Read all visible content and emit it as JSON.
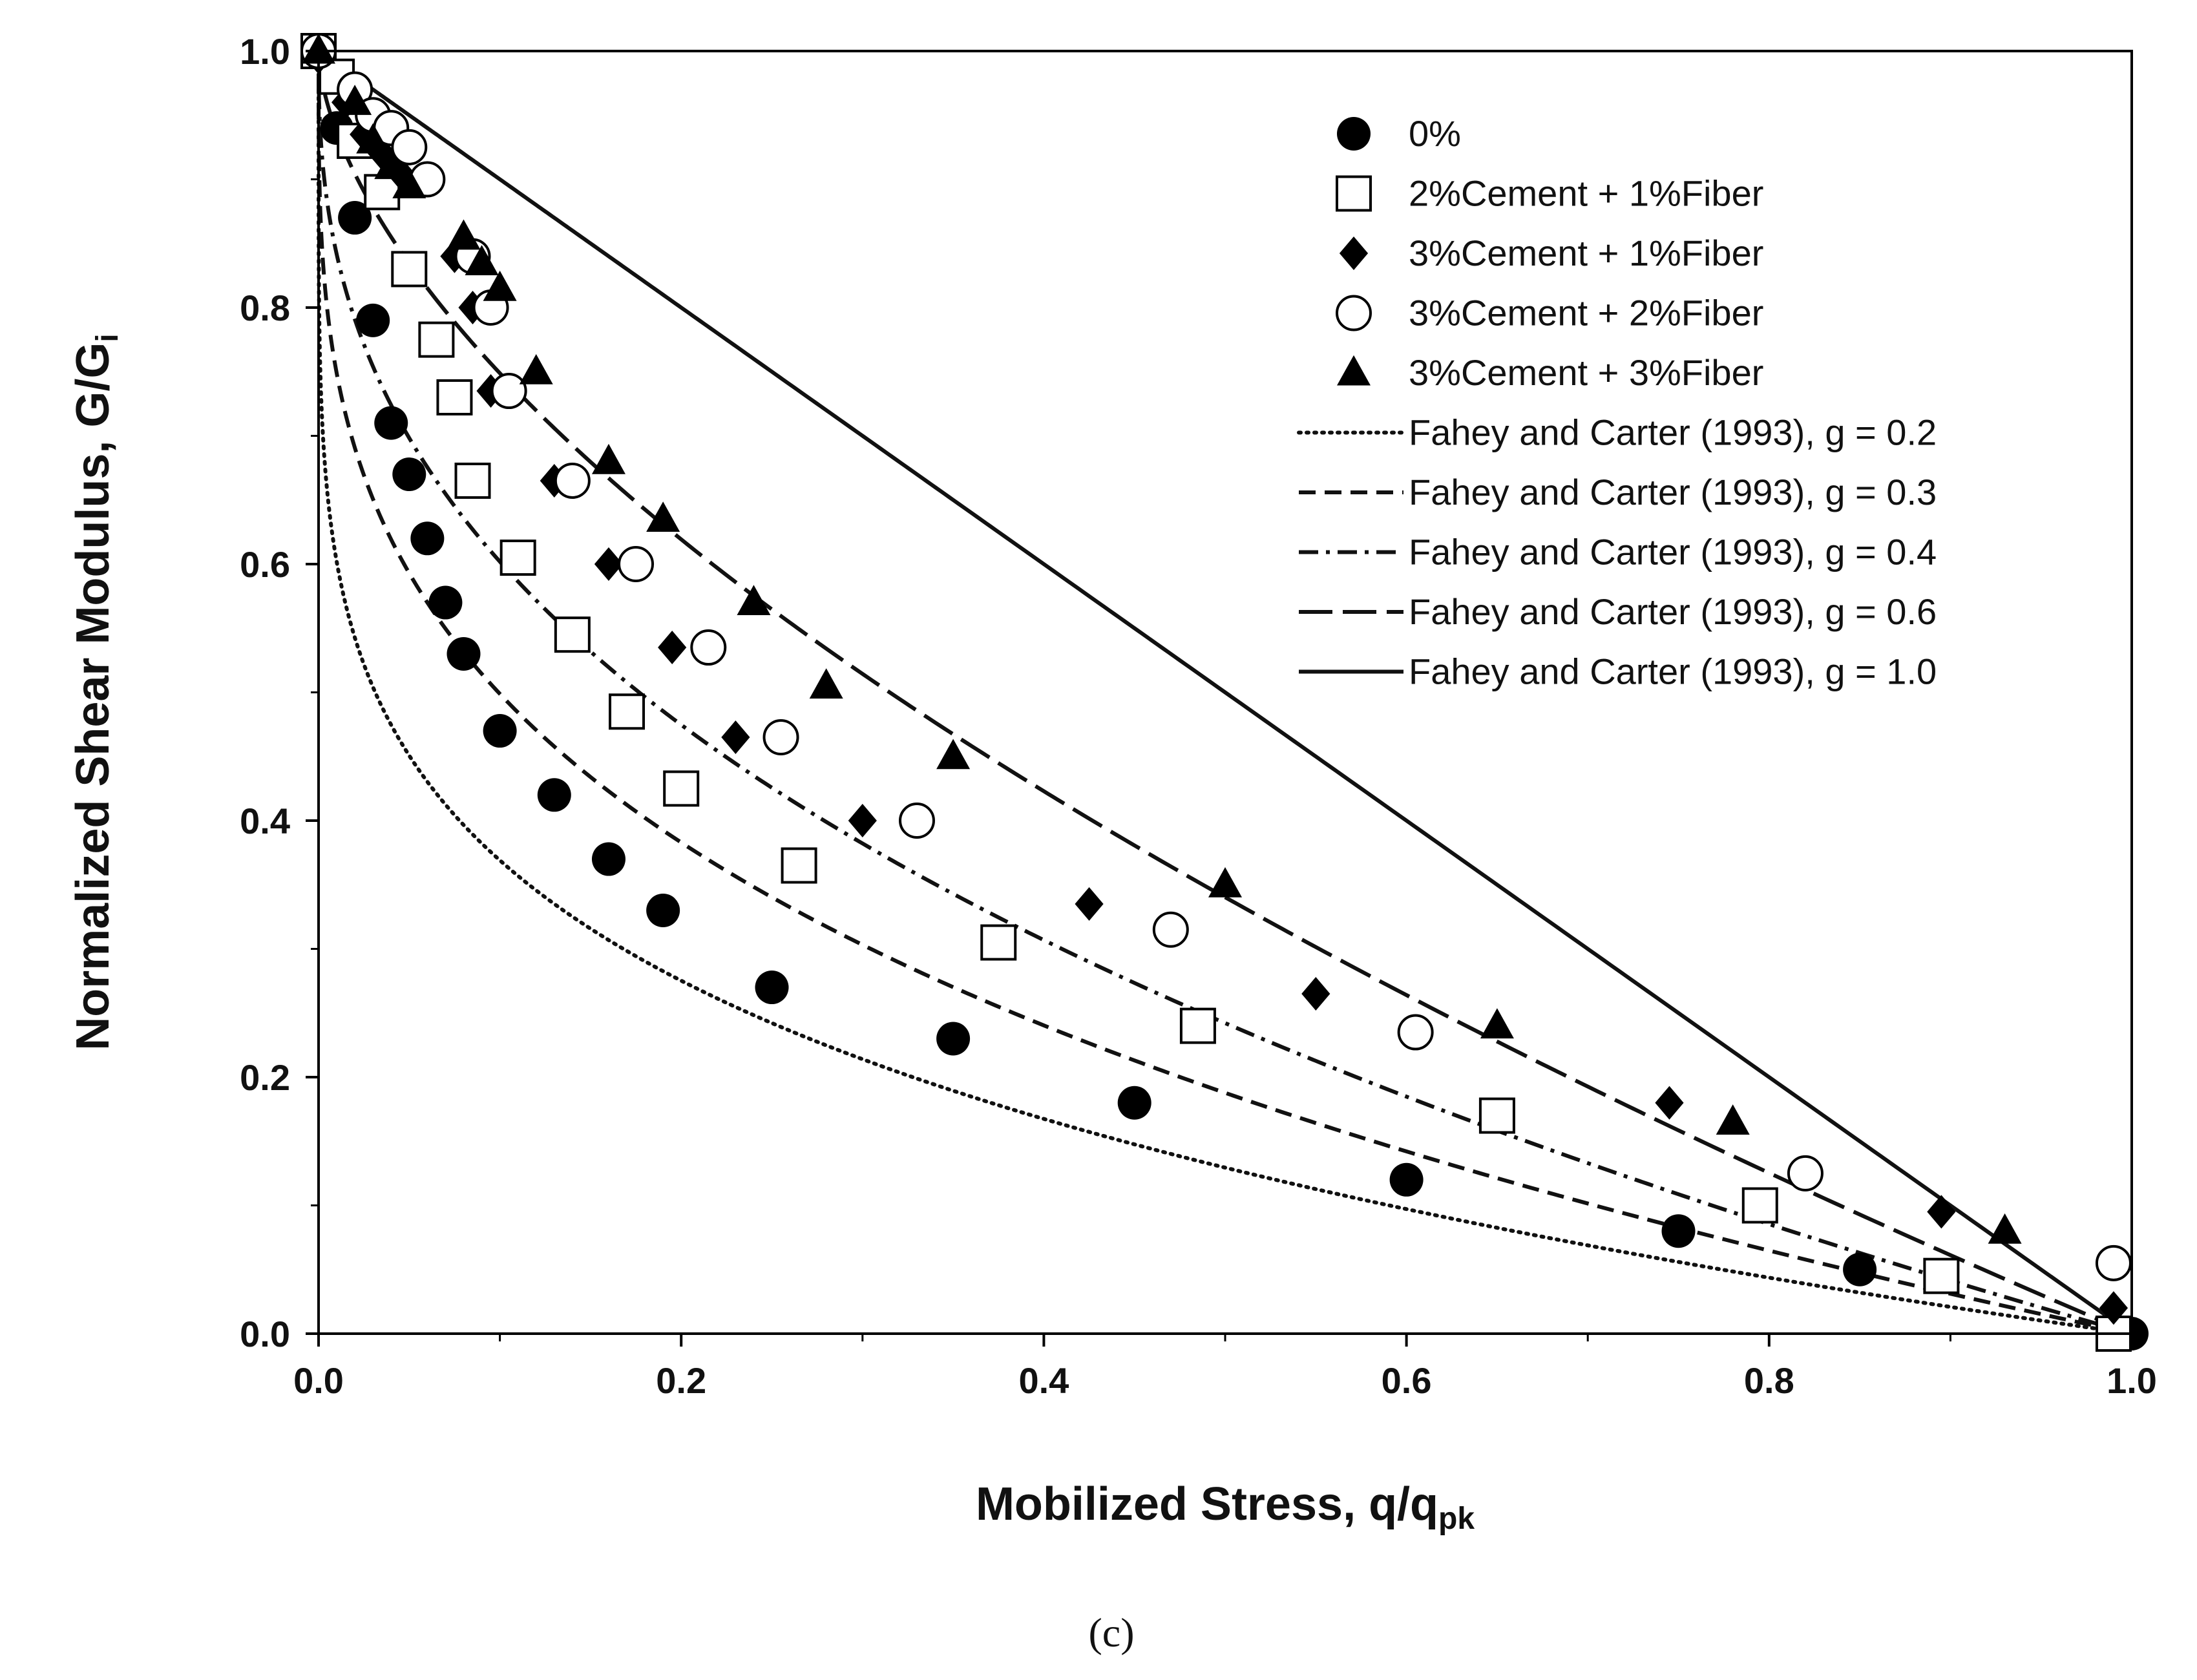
{
  "figure_caption": "(c)",
  "chart_data": {
    "type": "scatter",
    "title": "",
    "xlabel": "Mobilized Stress, q/q",
    "xlabel_sub": "pk",
    "ylabel": "Normalized Shear Modulus, G/G",
    "ylabel_sub": "i",
    "xlim": [
      0,
      1
    ],
    "ylim": [
      0,
      1
    ],
    "xticks": [
      0.0,
      0.2,
      0.4,
      0.6,
      0.8,
      1.0
    ],
    "xtick_labels": [
      "0.0",
      "0.2",
      "0.4",
      "0.6",
      "0.8",
      "1.0"
    ],
    "yticks": [
      0.0,
      0.2,
      0.4,
      0.6,
      0.8,
      1.0
    ],
    "ytick_labels": [
      "0.0",
      "0.2",
      "0.4",
      "0.6",
      "0.8",
      "1.0"
    ],
    "grid": false,
    "legend_position": "top-right",
    "series": [
      {
        "name": "0%",
        "marker": "circle-filled",
        "x": [
          0.0,
          0.01,
          0.02,
          0.03,
          0.04,
          0.05,
          0.06,
          0.07,
          0.08,
          0.1,
          0.13,
          0.16,
          0.19,
          0.25,
          0.35,
          0.45,
          0.6,
          0.75,
          0.85,
          1.0
        ],
        "y": [
          1.0,
          0.94,
          0.87,
          0.79,
          0.71,
          0.67,
          0.62,
          0.57,
          0.53,
          0.47,
          0.42,
          0.37,
          0.33,
          0.27,
          0.23,
          0.18,
          0.12,
          0.08,
          0.05,
          0.0
        ]
      },
      {
        "name": "2%Cement + 1%Fiber",
        "marker": "square-open",
        "x": [
          0.0,
          0.01,
          0.02,
          0.035,
          0.05,
          0.065,
          0.075,
          0.085,
          0.11,
          0.14,
          0.17,
          0.2,
          0.265,
          0.375,
          0.485,
          0.65,
          0.795,
          0.895,
          0.99
        ],
        "y": [
          1.0,
          0.98,
          0.93,
          0.89,
          0.83,
          0.775,
          0.73,
          0.665,
          0.605,
          0.545,
          0.485,
          0.425,
          0.365,
          0.305,
          0.24,
          0.17,
          0.1,
          0.045,
          0.0
        ]
      },
      {
        "name": "3%Cement + 1%Fiber",
        "marker": "diamond-filled",
        "x": [
          0.0,
          0.015,
          0.025,
          0.035,
          0.045,
          0.075,
          0.085,
          0.095,
          0.13,
          0.16,
          0.195,
          0.23,
          0.3,
          0.425,
          0.55,
          0.745,
          0.895,
          0.99
        ],
        "y": [
          0.995,
          0.96,
          0.935,
          0.92,
          0.905,
          0.84,
          0.8,
          0.735,
          0.665,
          0.6,
          0.535,
          0.465,
          0.4,
          0.335,
          0.265,
          0.18,
          0.095,
          0.02
        ]
      },
      {
        "name": "3%Cement + 2%Fiber",
        "marker": "circle-open",
        "x": [
          0.0,
          0.02,
          0.03,
          0.04,
          0.05,
          0.06,
          0.085,
          0.095,
          0.105,
          0.14,
          0.175,
          0.215,
          0.255,
          0.33,
          0.47,
          0.605,
          0.82,
          0.99
        ],
        "y": [
          1.0,
          0.97,
          0.95,
          0.94,
          0.925,
          0.9,
          0.84,
          0.8,
          0.735,
          0.665,
          0.6,
          0.535,
          0.465,
          0.4,
          0.315,
          0.235,
          0.125,
          0.055
        ]
      },
      {
        "name": "3%Cement + 3%Fiber",
        "marker": "triangle-filled",
        "x": [
          0.0,
          0.02,
          0.03,
          0.04,
          0.05,
          0.08,
          0.09,
          0.1,
          0.12,
          0.16,
          0.19,
          0.24,
          0.28,
          0.35,
          0.5,
          0.65,
          0.78,
          0.93
        ],
        "y": [
          1.0,
          0.96,
          0.93,
          0.91,
          0.895,
          0.855,
          0.835,
          0.815,
          0.75,
          0.68,
          0.635,
          0.57,
          0.505,
          0.45,
          0.35,
          0.24,
          0.165,
          0.08
        ]
      }
    ],
    "curves": [
      {
        "name": "Fahey and Carter (1993), g = 0.2",
        "g": 0.2,
        "style": "dotted"
      },
      {
        "name": "Fahey and Carter (1993), g = 0.3",
        "g": 0.3,
        "style": "dashed"
      },
      {
        "name": "Fahey and Carter (1993), g = 0.4",
        "g": 0.4,
        "style": "dash-dot"
      },
      {
        "name": "Fahey and Carter (1993), g = 0.6",
        "g": 0.6,
        "style": "long-dash"
      },
      {
        "name": "Fahey and Carter (1993), g = 1.0",
        "g": 1.0,
        "style": "solid"
      }
    ]
  }
}
